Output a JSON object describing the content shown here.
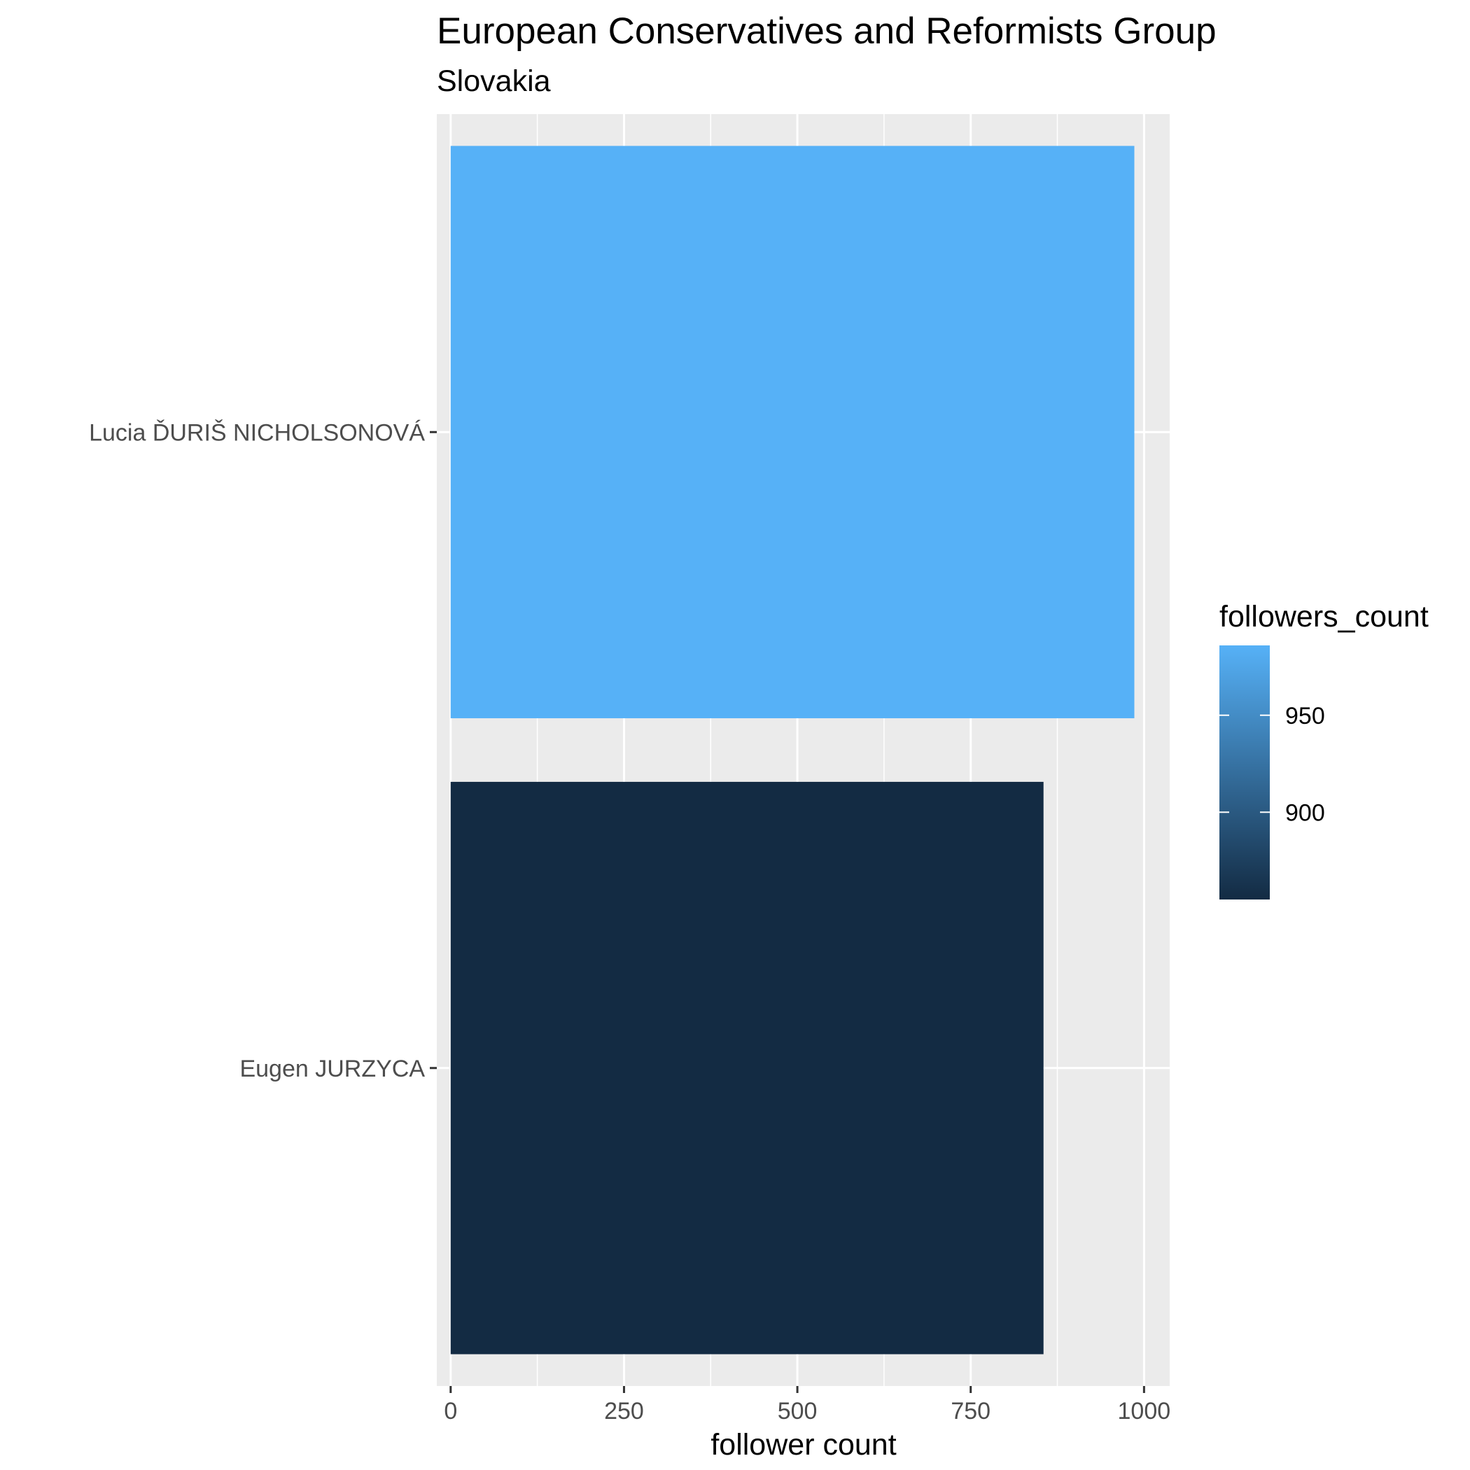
{
  "chart_data": {
    "type": "bar",
    "orientation": "horizontal",
    "title": "European Conservatives and Reformists Group",
    "subtitle": "Slovakia",
    "xlabel": "follower count",
    "ylabel": "",
    "categories": [
      "Lucia ĎURIŠ NICHOLSONOVÁ",
      "Eugen JURZYCA"
    ],
    "values": [
      986,
      855
    ],
    "xlim": [
      -20,
      1037
    ],
    "x_ticks": [
      0,
      250,
      500,
      750,
      1000
    ],
    "x_tick_labels": [
      "0",
      "250",
      "500",
      "750",
      "1000"
    ],
    "grid": true,
    "background": "#ebebeb",
    "legend": {
      "title": "followers_count",
      "placement": "right",
      "type": "colorbar",
      "range": [
        855,
        986
      ],
      "ticks": [
        900,
        950
      ],
      "tick_labels": [
        "900",
        "950"
      ],
      "low_color": "#132b43",
      "high_color": "#56b1f7"
    }
  }
}
